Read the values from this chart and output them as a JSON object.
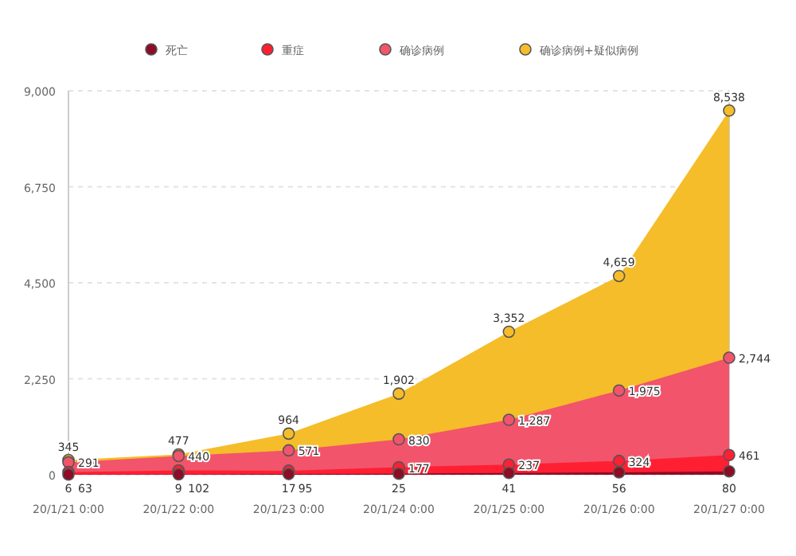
{
  "chart_data": {
    "type": "area",
    "categories": [
      "20/1/21 0:00",
      "20/1/22 0:00",
      "20/1/23 0:00",
      "20/1/24 0:00",
      "20/1/25 0:00",
      "20/1/26 0:00",
      "20/1/27 0:00"
    ],
    "series": [
      {
        "name": "死亡",
        "color": "#8c0d25",
        "values": [
          6,
          9,
          17,
          25,
          41,
          56,
          80
        ],
        "value_labels": [
          "6",
          "9",
          "17",
          "25",
          "41",
          "56",
          "80"
        ]
      },
      {
        "name": "重症",
        "color": "#ff1f33",
        "values": [
          63,
          102,
          95,
          177,
          237,
          324,
          461
        ],
        "value_labels": [
          "63",
          "102",
          "95",
          "177",
          "237",
          "324",
          "461"
        ]
      },
      {
        "name": "确诊病例",
        "color": "#f2546b",
        "values": [
          291,
          440,
          571,
          830,
          1287,
          1975,
          2744
        ],
        "value_labels": [
          "291",
          "440",
          "571",
          "830",
          "1,287",
          "1,975",
          "2,744"
        ]
      },
      {
        "name": "确诊病例+疑似病例",
        "color": "#f5bd2a",
        "values": [
          345,
          477,
          964,
          1902,
          3352,
          4659,
          8538
        ],
        "value_labels": [
          "345",
          "477",
          "964",
          "1,902",
          "3,352",
          "4,659",
          "8,538"
        ]
      }
    ],
    "ylim": [
      0,
      9000
    ],
    "yticks": [
      0,
      {
        "value": 2250,
        "label": "2,250"
      },
      {
        "value": 4500,
        "label": "4,500"
      },
      {
        "value": 6750,
        "label": "6,750"
      },
      {
        "value": 9000,
        "label": "9,000"
      }
    ],
    "grid": "y",
    "legend": "top",
    "marker": "circle"
  }
}
